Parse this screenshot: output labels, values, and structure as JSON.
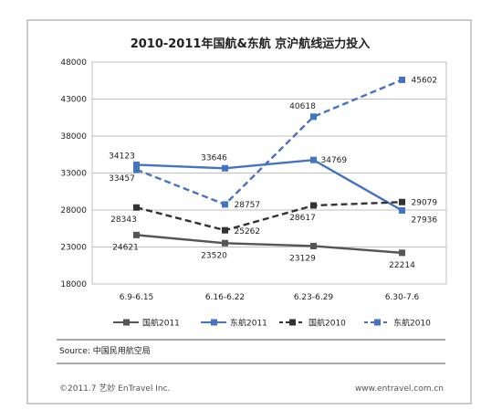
{
  "chart_data": {
    "type": "line",
    "title": "2010-2011年国航&东航 京沪航线运力投入",
    "categories": [
      "6.9-6.15",
      "6.16-6.22",
      "6.23-6.29",
      "6.30-7.6"
    ],
    "ylim": [
      18000,
      48000
    ],
    "yticks": [
      "48000",
      "43000",
      "38000",
      "33000",
      "28000",
      "23000",
      "18000"
    ],
    "grid": true,
    "legend_position": "bottom",
    "series": [
      {
        "name": "国航2011",
        "values": [
          24621,
          23520,
          23129,
          22214
        ],
        "color": "#555555",
        "dash": "solid"
      },
      {
        "name": "东航2011",
        "values": [
          34123,
          33646,
          34769,
          27936
        ],
        "color": "#4472c4",
        "dash": "solid"
      },
      {
        "name": "国航2010",
        "values": [
          28343,
          25262,
          28617,
          29079
        ],
        "color": "#333333",
        "dash": "dashed"
      },
      {
        "name": "东航2010",
        "values": [
          33457,
          28757,
          40618,
          45602
        ],
        "color": "#4472c4",
        "dash": "dashed"
      }
    ]
  },
  "source": "Source: 中国民用航空局",
  "footer": {
    "left": "©2011.7 艺妙 EnTravel Inc.",
    "right": "www.entravel.com.cn"
  }
}
